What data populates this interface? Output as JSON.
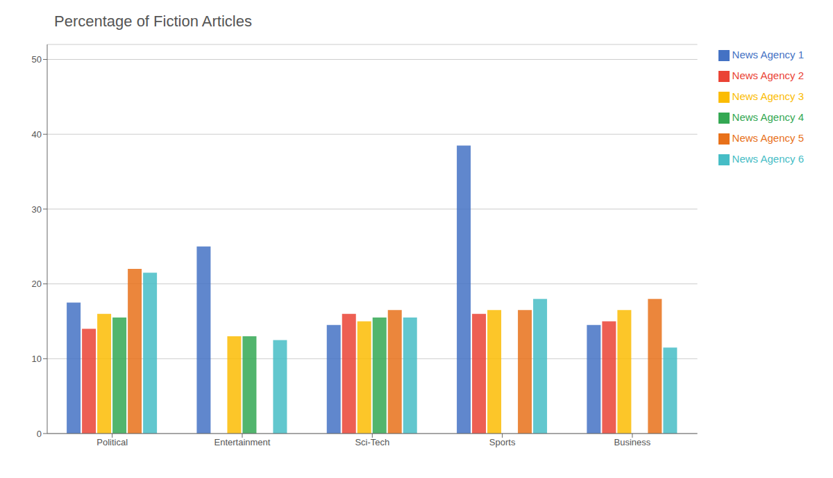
{
  "chart_data": {
    "type": "bar",
    "title": "Percentage of Fiction Articles",
    "categories": [
      "Political",
      "Entertainment",
      "Sci-Tech",
      "Sports",
      "Business"
    ],
    "series": [
      {
        "name": "News Agency 1",
        "color": "#4472C4",
        "values": [
          17.5,
          25.0,
          14.5,
          38.5,
          14.5
        ]
      },
      {
        "name": "News Agency 2",
        "color": "#EA4335",
        "values": [
          14.0,
          0,
          16.0,
          16.0,
          15.0
        ]
      },
      {
        "name": "News Agency 3",
        "color": "#FBBC04",
        "values": [
          16.0,
          13.0,
          15.0,
          16.5,
          16.5
        ]
      },
      {
        "name": "News Agency 4",
        "color": "#34A853",
        "values": [
          15.5,
          13.0,
          15.5,
          0,
          0
        ]
      },
      {
        "name": "News Agency 5",
        "color": "#E8711A",
        "values": [
          22.0,
          0,
          16.5,
          16.5,
          18.0
        ]
      },
      {
        "name": "News Agency 6",
        "color": "#46BDC6",
        "values": [
          21.5,
          12.5,
          15.5,
          18.0,
          11.5
        ]
      }
    ],
    "ylim": [
      0,
      52
    ],
    "yticks": [
      0,
      10,
      20,
      30,
      40,
      50
    ],
    "grid": true,
    "legend": "right"
  }
}
